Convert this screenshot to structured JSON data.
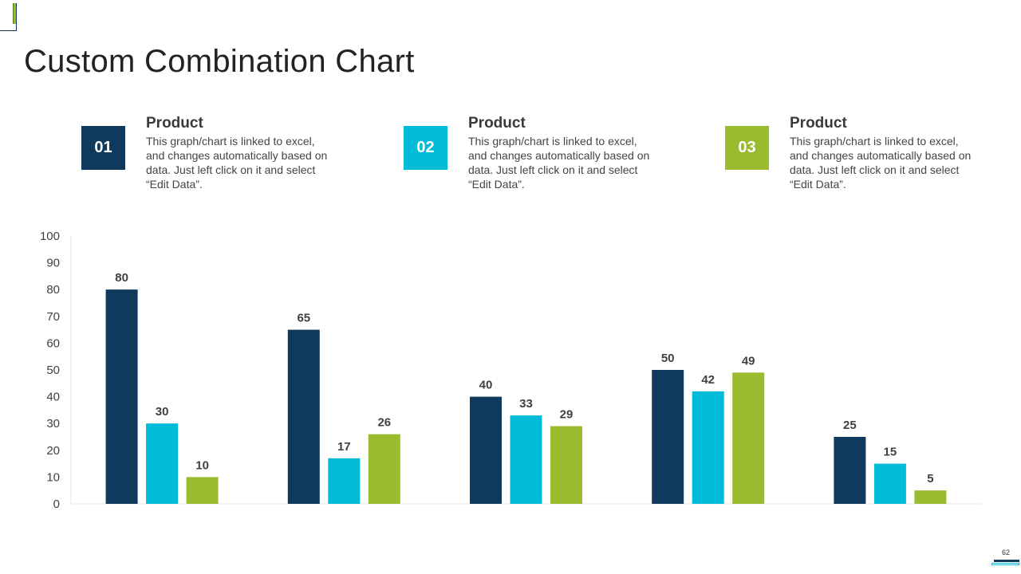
{
  "title": "Custom Combination Chart",
  "page_number": "62",
  "colors": {
    "series1": "#0f3a5e",
    "series2": "#00bcd9",
    "series3": "#9bbb2f",
    "axis": "#e6e6e6",
    "label": "#404040"
  },
  "products": [
    {
      "number": "01",
      "title": "Product",
      "description": "This graph/chart is linked to excel, and changes automatically based on data. Just left click on it and select “Edit Data”."
    },
    {
      "number": "02",
      "title": "Product",
      "description": "This graph/chart is linked to excel, and changes automatically based on data. Just left click on it and select “Edit Data”."
    },
    {
      "number": "03",
      "title": "Product",
      "description": "This graph/chart is linked to excel, and changes automatically based on data. Just left click on it and select “Edit Data”."
    }
  ],
  "chart_data": {
    "type": "bar",
    "title": "",
    "xlabel": "",
    "ylabel": "",
    "ylim": [
      0,
      100
    ],
    "yticks": [
      0,
      10,
      20,
      30,
      40,
      50,
      60,
      70,
      80,
      90,
      100
    ],
    "categories": [
      "",
      "",
      "",
      "",
      ""
    ],
    "series": [
      {
        "name": "Product 01",
        "values": [
          80,
          65,
          40,
          50,
          25
        ]
      },
      {
        "name": "Product 02",
        "values": [
          30,
          17,
          33,
          42,
          15
        ]
      },
      {
        "name": "Product 03",
        "values": [
          10,
          26,
          29,
          49,
          5
        ]
      }
    ],
    "grid": false,
    "legend": "none"
  }
}
